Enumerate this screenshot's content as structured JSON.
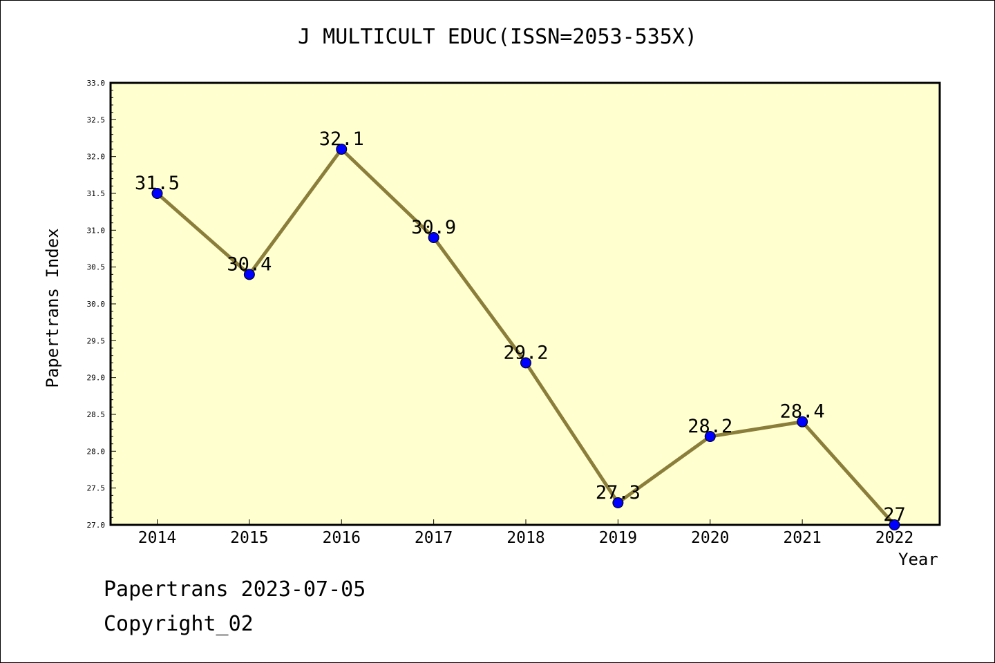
{
  "chart_data": {
    "type": "line",
    "title": "J MULTICULT EDUC(ISSN=2053-535X)",
    "xlabel": "Year",
    "ylabel": "Papertrans Index",
    "categories": [
      "2014",
      "2015",
      "2016",
      "2017",
      "2018",
      "2019",
      "2020",
      "2021",
      "2022"
    ],
    "values": [
      31.5,
      30.4,
      32.1,
      30.9,
      29.2,
      27.3,
      28.2,
      28.4,
      27
    ],
    "data_labels": [
      "31.5",
      "30.4",
      "32.1",
      "30.9",
      "29.2",
      "27.3",
      "28.2",
      "28.4",
      "27"
    ],
    "ylim": [
      27.0,
      33.0
    ],
    "yticks": [
      "27.0",
      "27.5",
      "28.0",
      "28.5",
      "29.0",
      "29.5",
      "30.0",
      "30.5",
      "31.0",
      "31.5",
      "32.0",
      "32.5",
      "33.0"
    ],
    "grid": false,
    "colors": {
      "plot_background": "#ffffd0",
      "line": "#8b7d3a",
      "marker": "#0000ff"
    }
  },
  "footer": {
    "line1": "Papertrans 2023-07-05",
    "line2": "Copyright_02"
  }
}
